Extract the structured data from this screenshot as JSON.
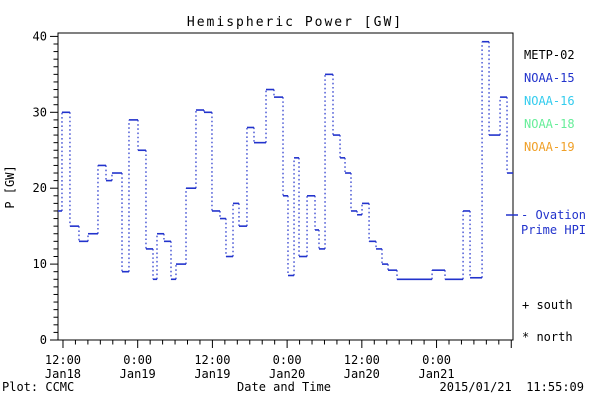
{
  "title": "Hemispheric Power [GW]",
  "footer": {
    "left": "Plot: CCMC",
    "xlabel": "Date and Time",
    "timestamp": "2015/01/21  11:55:09"
  },
  "legend": {
    "satellites": [
      {
        "label": "METP-02",
        "color": "#000000"
      },
      {
        "label": "NOAA-15",
        "color": "#2233CC"
      },
      {
        "label": "NOAA-16",
        "color": "#33CCEE"
      },
      {
        "label": "NOAA-18",
        "color": "#66EE99"
      },
      {
        "label": "NOAA-19",
        "color": "#F0A028"
      }
    ],
    "ovation": {
      "line1": "- Ovation",
      "line2": "Prime HPI",
      "color": "#2233CC"
    },
    "hemisphere_markers": [
      {
        "symbol": "+",
        "label": "south"
      },
      {
        "symbol": "*",
        "label": "north"
      }
    ]
  },
  "colors": {
    "axis": "#000000",
    "curve": "#2233CC",
    "background": "#ffffff"
  },
  "chart_data": {
    "type": "line",
    "title": "Hemispheric Power [GW]",
    "xlabel": "Date and Time",
    "ylabel": "P [GW]",
    "ylim": [
      0,
      40
    ],
    "y_major_step": 10,
    "y_minor_step": 1,
    "x_hours_range": [
      -0.8,
      72.28
    ],
    "x_minor_step_hours": 2,
    "x_ticks": [
      {
        "t": 0,
        "time": "12:00",
        "date": "Jan18"
      },
      {
        "t": 12,
        "time": "0:00",
        "date": "Jan19"
      },
      {
        "t": 24,
        "time": "12:00",
        "date": "Jan19"
      },
      {
        "t": 36,
        "time": "0:00",
        "date": "Jan20"
      },
      {
        "t": 48,
        "time": "12:00",
        "date": "Jan20"
      },
      {
        "t": 60,
        "time": "0:00",
        "date": "Jan21"
      }
    ],
    "grid": false,
    "legend_position": "right-outside",
    "series": [
      {
        "name": "Ovation Prime HPI",
        "color": "#2233CC",
        "style": "steps (solid tops, dotted risers)",
        "t_start_hours": [
          -0.8,
          -0.16,
          1.12,
          2.57,
          4.02,
          5.62,
          6.91,
          7.87,
          9.48,
          10.6,
          12.05,
          13.33,
          14.46,
          15.1,
          16.22,
          17.35,
          18.15,
          19.76,
          21.36,
          22.65,
          23.93,
          25.22,
          26.18,
          27.31,
          28.27,
          29.55,
          30.68,
          32.61,
          33.89,
          35.34,
          36.14,
          37.11,
          37.91,
          39.2,
          40.48,
          41.12,
          42.09,
          43.37,
          44.5,
          45.3,
          46.26,
          47.23,
          48.03,
          49.16,
          50.28,
          51.24,
          52.21,
          53.65,
          59.28,
          61.36,
          64.26,
          65.38,
          67.31,
          68.43,
          70.2,
          71.32
        ],
        "values_gw": [
          17,
          30,
          15,
          13,
          14,
          23,
          21,
          22,
          9,
          29,
          25,
          12,
          8,
          14,
          13,
          8,
          10,
          20,
          30.3,
          30,
          17,
          16,
          11,
          18,
          15,
          28,
          26,
          33,
          32,
          19,
          8.5,
          24,
          11,
          19,
          14.5,
          12,
          35,
          27,
          24,
          22,
          17,
          16.5,
          18,
          13,
          12,
          10,
          9.2,
          8,
          9.2,
          8,
          17,
          8.2,
          39.3,
          27,
          32,
          22
        ],
        "t_end_hours": 72.28
      }
    ]
  }
}
